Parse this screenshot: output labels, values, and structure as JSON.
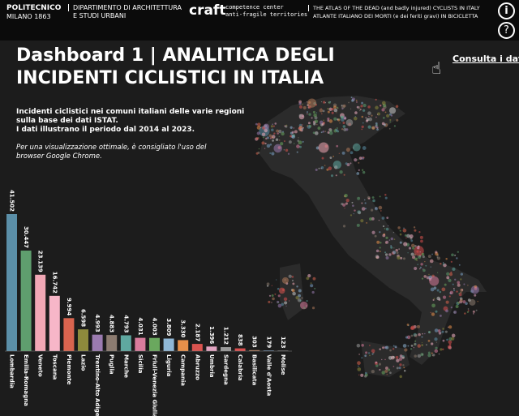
{
  "header": {
    "logo_line1": "POLITECNICO",
    "logo_line2": "MILANO 1863",
    "dept_line1": "DIPARTIMENTO DI ARCHITETTURA",
    "dept_line2": "E STUDI URBANI",
    "craft": "craft",
    "craft_line1": "competence center",
    "craft_line2": "anti-fragile territories",
    "atlas_line1": "THE ATLAS OF THE DEAD (and badly injured) CYCLISTS IN ITALY",
    "atlas_line2": "ATLANTE ITALIANO DEI MORTI (e dei feriti gravi) IN BICICLETTA",
    "info_icon": "i",
    "help_icon": "?"
  },
  "title_line1": "Dashboard 1 | ANALITICA DEGLI",
  "title_line2": "INCIDENTI CICLISTICI IN ITALIA",
  "link": "Consulta i dati",
  "description": [
    "Incidenti ciclistici nei comuni italiani delle varie regioni",
    "sulla base dei dati ISTAT.",
    "I dati illustrano il periodo dal 2014 al 2023."
  ],
  "note": [
    "Per una visualizzazione ottimale, è consigliato l'uso del",
    "browser Google Chrome."
  ],
  "chart_data": {
    "type": "bar",
    "categories": [
      "Lombardia",
      "Emilia-Romagna",
      "Veneto",
      "Toscana",
      "Piemonte",
      "Lazio",
      "Trentino-Alto Adige",
      "Puglia",
      "Marche",
      "Sicilia",
      "Friuli-Venezia Giulia",
      "Liguria",
      "Campania",
      "Abruzzo",
      "Umbria",
      "Sardegna",
      "Calabria",
      "Basilicata",
      "Valle d'Aosta",
      "Molise"
    ],
    "values": [
      41502,
      30447,
      23139,
      16742,
      9994,
      6598,
      4993,
      4883,
      4793,
      4031,
      4003,
      3809,
      3330,
      2187,
      1396,
      1212,
      838,
      303,
      179,
      123
    ],
    "value_labels": [
      "41.502",
      "30.447",
      "23.139",
      "16.742",
      "9.994",
      "6.598",
      "4.993",
      "4.883",
      "4.793",
      "4.031",
      "4.003",
      "3.809",
      "3.330",
      "2.187",
      "1.396",
      "1.212",
      "838",
      "303",
      "179",
      "123"
    ],
    "colors": [
      "#5b8fa8",
      "#5f9e6e",
      "#f1a7b5",
      "#f7b6c8",
      "#d9644f",
      "#8d8a3c",
      "#9b7bb0",
      "#8c7b70",
      "#5fa8a0",
      "#d87c9c",
      "#6aa85e",
      "#8fb7d6",
      "#e8904a",
      "#d9534f",
      "#e0a3c0",
      "#9a9a9a",
      "#d94f4f",
      "#b07a5a",
      "#7aa0c4",
      "#c8c8c8"
    ]
  }
}
